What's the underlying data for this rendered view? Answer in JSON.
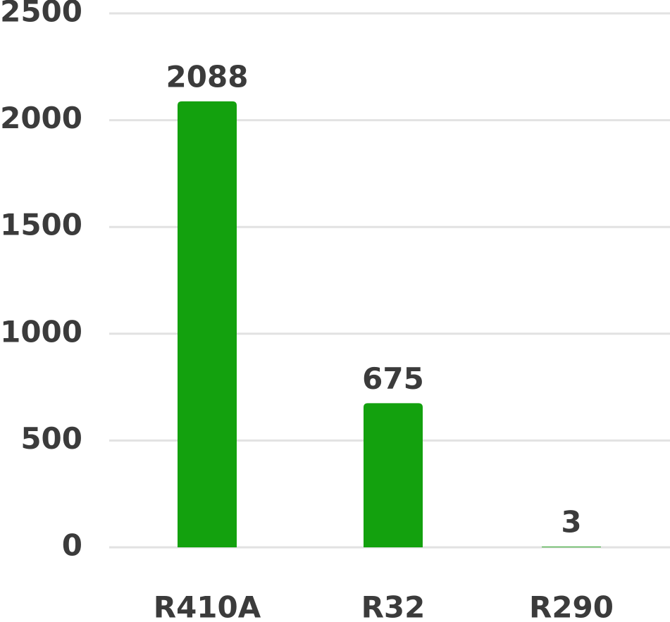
{
  "chart_data": {
    "type": "bar",
    "categories": [
      "R410A",
      "R32",
      "R290"
    ],
    "values": [
      2088,
      675,
      3
    ],
    "color": "#13a10e",
    "ylim": [
      0,
      2500
    ],
    "yticks": [
      0,
      500,
      1000,
      1500,
      2000,
      2500
    ],
    "grid": true
  }
}
